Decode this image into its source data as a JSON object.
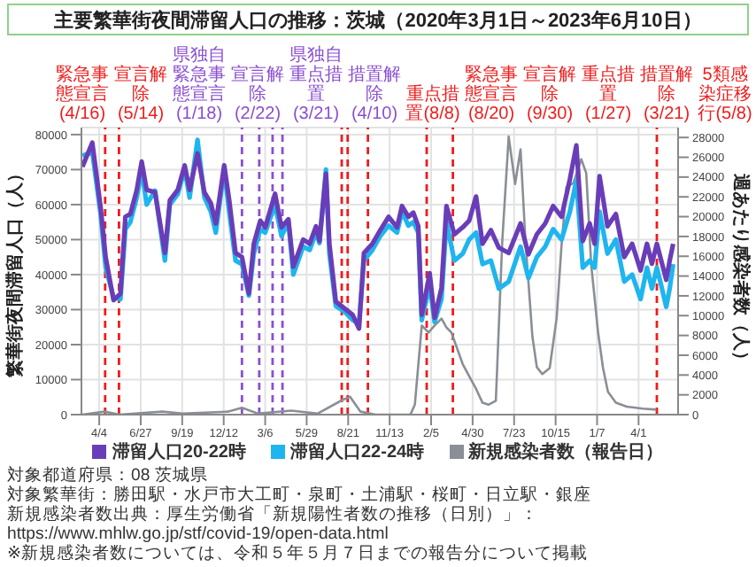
{
  "chart_data": {
    "type": "line",
    "title": "主要繁華街夜間滞留人口の推移：茨城（2020年3月1日～2023年6月10日）",
    "ylabel": "繁華街夜間滞留人口（人）",
    "y2label": "週あたり感染者数（人）",
    "x": [
      "2020-03-01",
      "2020-03-21",
      "2020-04-07",
      "2020-04-17",
      "2020-05-03",
      "2020-05-17",
      "2020-05-27",
      "2020-06-06",
      "2020-06-19",
      "2020-06-29",
      "2020-07-09",
      "2020-07-26",
      "2020-08-15",
      "2020-08-25",
      "2020-09-10",
      "2020-09-24",
      "2020-10-04",
      "2020-10-20",
      "2020-11-03",
      "2020-11-16",
      "2020-11-26",
      "2020-12-13",
      "2020-12-23",
      "2021-01-05",
      "2021-01-18",
      "2021-02-01",
      "2021-02-11",
      "2021-02-24",
      "2021-03-06",
      "2021-03-26",
      "2021-04-08",
      "2021-04-22",
      "2021-05-02",
      "2021-05-22",
      "2021-06-04",
      "2021-06-17",
      "2021-06-24",
      "2021-07-07",
      "2021-07-14",
      "2021-07-27",
      "2021-08-13",
      "2021-08-30",
      "2021-09-12",
      "2021-09-22",
      "2021-10-09",
      "2021-10-25",
      "2021-11-11",
      "2021-11-28",
      "2021-12-08",
      "2021-12-21",
      "2021-12-31",
      "2022-01-10",
      "2022-01-17",
      "2022-02-02",
      "2022-02-12",
      "2022-02-26",
      "2022-03-08",
      "2022-03-24",
      "2022-04-10",
      "2022-04-23",
      "2022-05-07",
      "2022-05-20",
      "2022-06-06",
      "2022-06-22",
      "2022-07-12",
      "2022-08-05",
      "2022-08-21",
      "2022-09-07",
      "2022-09-24",
      "2022-10-10",
      "2022-10-27",
      "2022-11-13",
      "2022-11-26",
      "2022-12-09",
      "2022-12-23",
      "2023-01-02",
      "2023-01-12",
      "2023-01-28",
      "2023-02-14",
      "2023-03-03",
      "2023-03-19",
      "2023-04-05",
      "2023-04-18",
      "2023-04-28",
      "2023-05-08",
      "2023-05-15",
      "2023-05-27",
      "2023-06-03",
      "2023-06-10"
    ],
    "series": [
      {
        "name": "滞留人口20-22時",
        "color": "#6a3db8",
        "values": [
          70800,
          77700,
          59000,
          45000,
          32700,
          34600,
          56500,
          57300,
          64200,
          72300,
          64200,
          63500,
          46200,
          61200,
          64200,
          71200,
          64200,
          74600,
          63500,
          60400,
          54600,
          71200,
          61500,
          46200,
          45000,
          34600,
          48800,
          55400,
          53500,
          63100,
          53500,
          55800,
          42300,
          50000,
          48800,
          53800,
          49600,
          68800,
          48800,
          32300,
          30400,
          28500,
          24600,
          46200,
          48800,
          52700,
          56500,
          53500,
          59600,
          56500,
          57700,
          53800,
          28500,
          40400,
          27700,
          36200,
          59600,
          51500,
          53500,
          55400,
          62300,
          48800,
          52700,
          47700,
          46200,
          54600,
          45800,
          51500,
          54600,
          59600,
          56500,
          67300,
          76900,
          49600,
          54600,
          48800,
          68100,
          53800,
          57300,
          45000,
          48800,
          41200,
          48800,
          43100,
          48800,
          45000,
          38500,
          44000,
          48800
        ]
      },
      {
        "name": "滞留人口22-24時",
        "color": "#1fb5ee",
        "values": [
          74000,
          75000,
          57000,
          42000,
          33500,
          33000,
          53000,
          55000,
          62000,
          70000,
          60000,
          64000,
          44000,
          60000,
          63000,
          70000,
          62000,
          78500,
          62000,
          58000,
          52000,
          70000,
          58000,
          44000,
          43000,
          34000,
          46000,
          53000,
          52000,
          60000,
          51000,
          55000,
          40000,
          48000,
          47000,
          52000,
          49000,
          70000,
          46000,
          31000,
          29500,
          27000,
          26000,
          44000,
          47000,
          51000,
          54000,
          52000,
          58000,
          54000,
          55000,
          52000,
          27000,
          37000,
          26500,
          33000,
          55000,
          44000,
          46000,
          50000,
          52000,
          43000,
          44000,
          36000,
          38000,
          48000,
          39000,
          45000,
          48000,
          53000,
          50000,
          58000,
          66900,
          42000,
          44000,
          42000,
          58000,
          46000,
          50000,
          38000,
          40000,
          33000,
          42000,
          36000,
          42000,
          38000,
          30800,
          36000,
          43000
        ]
      },
      {
        "name": "新規感染者数（報告日）",
        "color": "#8a8f96",
        "axis": "y2",
        "x": [
          "2020-03-01",
          "2020-04-15",
          "2020-05-15",
          "2020-08-10",
          "2020-09-20",
          "2020-12-20",
          "2021-01-18",
          "2021-02-20",
          "2021-04-28",
          "2021-06-20",
          "2021-08-10",
          "2021-08-25",
          "2021-09-15",
          "2021-10-15",
          "2021-12-25",
          "2022-01-03",
          "2022-01-17",
          "2022-01-31",
          "2022-02-12",
          "2022-02-26",
          "2022-03-08",
          "2022-03-18",
          "2022-04-10",
          "2022-04-25",
          "2022-05-07",
          "2022-05-20",
          "2022-06-01",
          "2022-06-16",
          "2022-06-29",
          "2022-07-12",
          "2022-07-25",
          "2022-08-05",
          "2022-08-15",
          "2022-08-29",
          "2022-09-07",
          "2022-09-18",
          "2022-10-03",
          "2022-10-17",
          "2022-10-27",
          "2022-11-06",
          "2022-11-20",
          "2022-12-06",
          "2022-12-16",
          "2022-12-26",
          "2023-01-09",
          "2023-01-19",
          "2023-01-29",
          "2023-02-14",
          "2023-03-08",
          "2023-04-10",
          "2023-05-07"
        ],
        "values": [
          0,
          300,
          0,
          300,
          100,
          300,
          700,
          100,
          400,
          100,
          1500,
          1800,
          300,
          0,
          0,
          1000,
          9000,
          8300,
          9000,
          9700,
          8800,
          8300,
          5100,
          3700,
          2600,
          1200,
          1000,
          1400,
          17500,
          28100,
          23300,
          26800,
          17500,
          7900,
          4800,
          4100,
          4700,
          9700,
          17100,
          23000,
          23400,
          25800,
          24400,
          15200,
          8300,
          4700,
          2300,
          1200,
          800,
          600,
          500
        ]
      }
    ],
    "xlim": [
      "2020-02-28",
      "2023-06-20"
    ],
    "xticks": [
      {
        "value": "2020-04-04",
        "label": "4/4"
      },
      {
        "value": "2020-06-27",
        "label": "6/27"
      },
      {
        "value": "2020-09-19",
        "label": "9/19"
      },
      {
        "value": "2020-12-12",
        "label": "12/12"
      },
      {
        "value": "2021-03-06",
        "label": "3/6"
      },
      {
        "value": "2021-05-29",
        "label": "5/29"
      },
      {
        "value": "2021-08-21",
        "label": "8/21"
      },
      {
        "value": "2021-11-13",
        "label": "11/13"
      },
      {
        "value": "2022-02-05",
        "label": "2/5"
      },
      {
        "value": "2022-04-30",
        "label": "4/30"
      },
      {
        "value": "2022-07-23",
        "label": "7/23"
      },
      {
        "value": "2022-10-15",
        "label": "10/15"
      },
      {
        "value": "2023-01-07",
        "label": "1/7"
      },
      {
        "value": "2023-04-01",
        "label": "4/1"
      }
    ],
    "ylim": [
      0,
      82000
    ],
    "yticks": [
      0,
      10000,
      20000,
      30000,
      40000,
      50000,
      60000,
      70000,
      80000
    ],
    "y2lim": [
      0,
      29000
    ],
    "y2ticks": [
      0,
      2000,
      4000,
      6000,
      8000,
      10000,
      12000,
      14000,
      16000,
      18000,
      20000,
      22000,
      24000,
      26000,
      28000
    ],
    "ref_lines": [
      {
        "axis": "x",
        "value": "2020-04-16",
        "label": "緊急事態宣言(4/16)",
        "color": "#ee1c1c",
        "line_style": "dashed"
      },
      {
        "axis": "x",
        "value": "2020-05-14",
        "label": "宣言解除(5/14)",
        "color": "#ee1c1c",
        "line_style": "dashed"
      },
      {
        "axis": "x",
        "value": "2021-01-18",
        "label": "県独自緊急事態宣言(1/18)",
        "color": "#8a4fd0",
        "line_style": "dashed"
      },
      {
        "axis": "x",
        "value": "2021-02-22",
        "label": "宣言解除(2/22)",
        "color": "#8a4fd0",
        "line_style": "dashed"
      },
      {
        "axis": "x",
        "value": "2021-03-21",
        "label": "県独自重点措置(3/21)",
        "color": "#8a4fd0",
        "line_style": "dashed"
      },
      {
        "axis": "x",
        "value": "2021-04-10",
        "label": "措置解除(4/10)",
        "color": "#8a4fd0",
        "line_style": "dashed"
      },
      {
        "axis": "x",
        "value": "2021-08-08",
        "label": "重点措置(8/8)",
        "color": "#ee1c1c",
        "line_style": "dashed"
      },
      {
        "axis": "x",
        "value": "2021-08-20",
        "label": "緊急事態宣言(8/20)",
        "color": "#ee1c1c",
        "line_style": "dashed"
      },
      {
        "axis": "x",
        "value": "2021-09-30",
        "label": "宣言解除(9/30)",
        "color": "#ee1c1c",
        "line_style": "dashed"
      },
      {
        "axis": "x",
        "value": "2022-01-27",
        "label": "重点措置(1/27)",
        "color": "#ee1c1c",
        "line_style": "dashed"
      },
      {
        "axis": "x",
        "value": "2022-03-21",
        "label": "措置解除(3/21)",
        "color": "#ee1c1c",
        "line_style": "dashed"
      },
      {
        "axis": "x",
        "value": "2023-05-08",
        "label": "5類感染症移行(5/8)",
        "color": "#ee1c1c",
        "line_style": "dashed"
      }
    ],
    "grid": true,
    "legend": "bottom",
    "marker": "none",
    "annotations": [
      "対象都道府県：08 茨城県",
      "対象繁華街：勝田駅・水戸市大工町・泉町・土浦駅・桜町・日立駅・銀座",
      "新規感染者数出典：厚生労働省「新規陽性者数の推移（日別）」：https://www.mhlw.go.jp/stf/covid-19/open-data.html",
      "※新規感染者数については、令和５年５月７日までの報告分について掲載"
    ]
  }
}
